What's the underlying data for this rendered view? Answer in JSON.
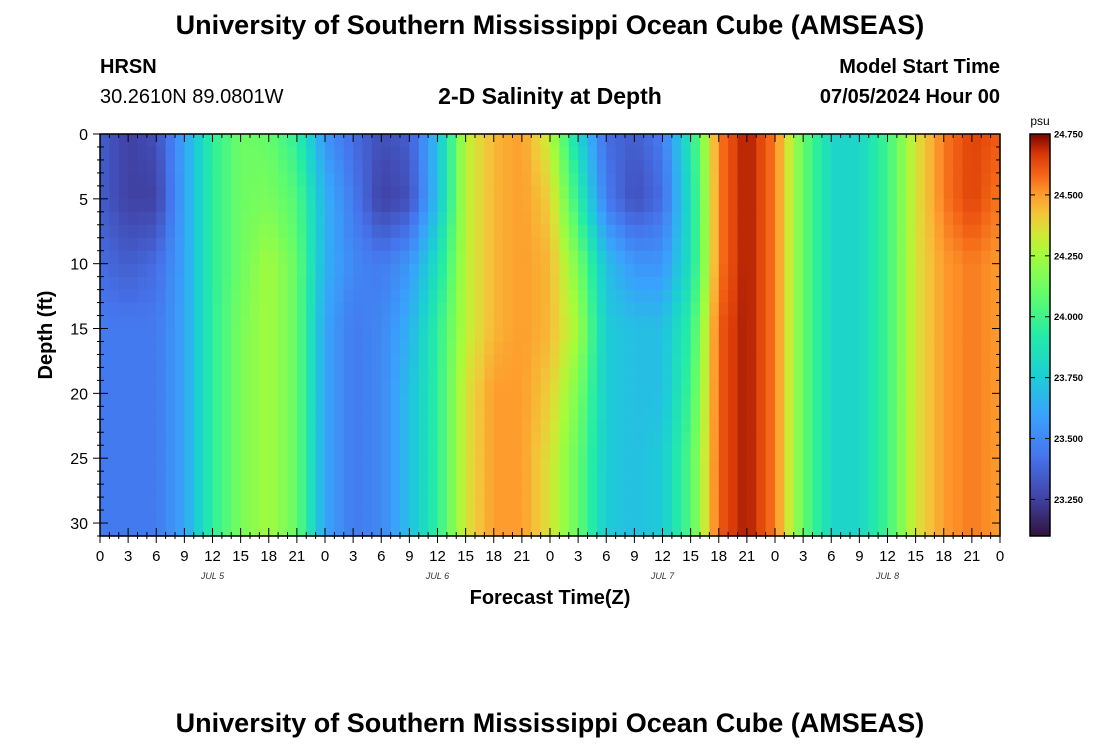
{
  "header": {
    "title": "University of Southern Mississippi Ocean Cube (AMSEAS)",
    "station_code": "HRSN",
    "station_coords": "30.2610N  89.0801W",
    "subtitle": "2-D Salinity at Depth",
    "model_start_label": "Model Start Time",
    "model_start_value": "07/05/2024 Hour 00"
  },
  "footer": {
    "title": "University of Southern Mississippi Ocean Cube (AMSEAS)"
  },
  "chart_data": {
    "type": "heatmap",
    "title": "2-D Salinity at Depth",
    "xlabel": "Forecast Time(Z)",
    "ylabel": "Depth (ft)",
    "x_hours": [
      0,
      3,
      6,
      9,
      12,
      15,
      18,
      21,
      24,
      27,
      30,
      33,
      36,
      39,
      42,
      45,
      48,
      51,
      54,
      57,
      60,
      63,
      66,
      69,
      72,
      75,
      78,
      81,
      84,
      87,
      90,
      93,
      96
    ],
    "x_tick_labels": [
      "0",
      "3",
      "6",
      "9",
      "12",
      "15",
      "18",
      "21",
      "0",
      "3",
      "6",
      "9",
      "12",
      "15",
      "18",
      "21",
      "0",
      "3",
      "6",
      "9",
      "12",
      "15",
      "18",
      "21",
      "0",
      "3",
      "6",
      "9",
      "12",
      "15",
      "18",
      "21",
      "0"
    ],
    "day_labels": [
      {
        "label": "JUL 5",
        "hour": 12
      },
      {
        "label": "JUL 6",
        "hour": 36
      },
      {
        "label": "JUL 7",
        "hour": 60
      },
      {
        "label": "JUL 8",
        "hour": 84
      }
    ],
    "xlim": [
      0,
      96
    ],
    "ylim": [
      0,
      31
    ],
    "y_ticks": [
      0,
      5,
      10,
      15,
      20,
      25,
      30
    ],
    "y_tick_labels": [
      "0",
      "5",
      "10",
      "15",
      "20",
      "25",
      "30"
    ],
    "colorbar": {
      "unit": "psu",
      "min": 23.1,
      "max": 24.75,
      "ticks": [
        23.25,
        23.5,
        23.75,
        24.0,
        24.25,
        24.5,
        24.75
      ],
      "tick_labels": [
        "23.250",
        "23.500",
        "23.750",
        "24.000",
        "24.250",
        "24.500",
        "24.750"
      ]
    },
    "depths": [
      0,
      5,
      10,
      15,
      20,
      25,
      31
    ],
    "times": [
      0,
      3,
      6,
      9,
      12,
      15,
      18,
      21,
      24,
      27,
      30,
      33,
      36,
      39,
      42,
      45,
      48,
      51,
      54,
      57,
      60,
      63,
      66,
      69,
      72,
      75,
      78,
      81,
      84,
      87,
      90,
      93,
      96
    ],
    "salinity": [
      [
        23.35,
        23.25,
        23.3,
        23.6,
        23.95,
        24.12,
        24.1,
        23.95,
        23.55,
        23.4,
        23.3,
        23.35,
        23.7,
        24.3,
        24.45,
        24.5,
        24.3,
        23.8,
        23.4,
        23.35,
        23.45,
        23.9,
        24.55,
        24.72,
        24.55,
        24.1,
        23.8,
        23.8,
        24.0,
        24.35,
        24.55,
        24.65,
        24.6
      ],
      [
        23.35,
        23.25,
        23.25,
        23.6,
        23.95,
        24.12,
        24.15,
        24.05,
        23.65,
        23.45,
        23.25,
        23.3,
        23.7,
        24.3,
        24.45,
        24.5,
        24.4,
        23.95,
        23.45,
        23.3,
        23.4,
        23.85,
        24.55,
        24.72,
        24.55,
        24.1,
        23.8,
        23.8,
        24.0,
        24.35,
        24.55,
        24.65,
        24.55
      ],
      [
        23.4,
        23.35,
        23.4,
        23.6,
        23.95,
        24.12,
        24.25,
        24.1,
        23.65,
        23.5,
        23.45,
        23.55,
        23.85,
        24.3,
        24.45,
        24.5,
        24.45,
        24.15,
        23.7,
        23.55,
        23.55,
        23.85,
        24.55,
        24.72,
        24.55,
        24.1,
        23.8,
        23.8,
        24.0,
        24.35,
        24.5,
        24.55,
        24.5
      ],
      [
        23.45,
        23.45,
        23.45,
        23.6,
        23.95,
        24.15,
        24.25,
        24.1,
        23.6,
        23.45,
        23.5,
        23.65,
        23.95,
        24.3,
        24.45,
        24.5,
        24.45,
        24.25,
        23.75,
        23.7,
        23.7,
        23.95,
        24.6,
        24.72,
        24.55,
        24.1,
        23.8,
        23.8,
        24.0,
        24.35,
        24.5,
        24.55,
        24.5
      ],
      [
        23.45,
        23.45,
        23.45,
        23.6,
        23.95,
        24.15,
        24.25,
        24.1,
        23.6,
        23.45,
        23.5,
        23.7,
        23.95,
        24.35,
        24.5,
        24.5,
        24.4,
        24.15,
        23.75,
        23.7,
        23.7,
        24.0,
        24.6,
        24.72,
        24.55,
        24.1,
        23.8,
        23.8,
        24.0,
        24.35,
        24.5,
        24.55,
        24.5
      ],
      [
        23.45,
        23.45,
        23.45,
        23.6,
        23.95,
        24.15,
        24.25,
        24.1,
        23.6,
        23.45,
        23.5,
        23.7,
        23.95,
        24.35,
        24.5,
        24.5,
        24.35,
        24.1,
        23.75,
        23.7,
        23.75,
        24.05,
        24.6,
        24.72,
        24.55,
        24.1,
        23.8,
        23.8,
        24.0,
        24.35,
        24.5,
        24.55,
        24.5
      ],
      [
        23.45,
        23.45,
        23.45,
        23.6,
        23.95,
        24.15,
        24.25,
        24.1,
        23.6,
        23.45,
        23.5,
        23.7,
        23.95,
        24.35,
        24.5,
        24.5,
        24.35,
        24.1,
        23.75,
        23.7,
        23.75,
        24.05,
        24.6,
        24.72,
        24.55,
        24.1,
        23.8,
        23.8,
        24.0,
        24.35,
        24.5,
        24.55,
        24.5
      ]
    ]
  }
}
